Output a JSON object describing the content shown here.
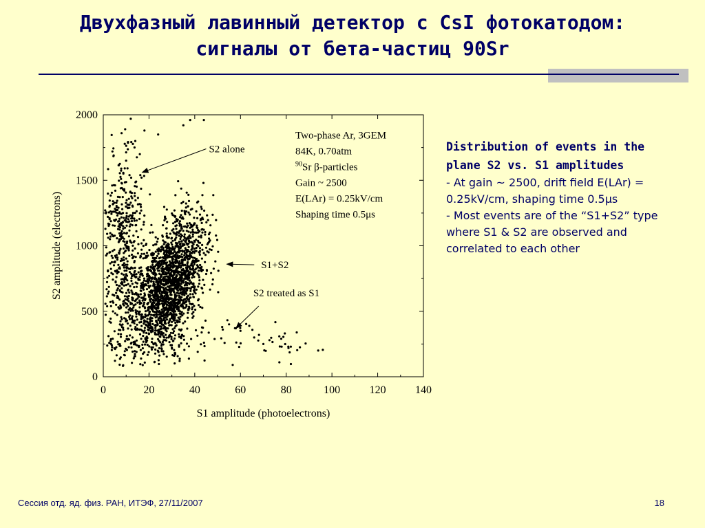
{
  "slide": {
    "title_line1": "Двухфазный лавинный детектор с CsI фотокатодом:",
    "title_line2": "сигналы от бета-частиц 90Sr",
    "description": {
      "heading": "Distribution of events in the plane S2 vs. S1 amplitudes",
      "line1": "- At gain ~ 2500, drift field E(LAr) = 0.25kV/cm, shaping time 0.5μs",
      "line2": "- Most events are of the “S1+S2” type where S1 & S2 are observed and correlated to each other"
    },
    "footer_left": "Сессия отд. яд. физ. РАН, ИТЭФ, 27/11/2007",
    "page_number": "18"
  },
  "colors": {
    "background": "#FFFFCC",
    "title": "#000066",
    "rule": "#000066",
    "accent_bar": "#C0C0C0",
    "points": "#000000"
  },
  "chart_data": {
    "type": "scatter",
    "xlabel": "S1 amplitude (photoelectrons)",
    "ylabel": "S2 amplitude (electrons)",
    "xlim": [
      0,
      140
    ],
    "ylim": [
      0,
      2000
    ],
    "x_ticks": [
      "0",
      "20",
      "40",
      "60",
      "80",
      "100",
      "120",
      "140"
    ],
    "y_ticks": [
      "0",
      "500",
      "1000",
      "1500",
      "2000"
    ],
    "grid": false,
    "annotation_box": {
      "lines": [
        "Two-phase Ar, 3GEM",
        "84K, 0.70atm",
        "90Sr β-particles",
        "Gain ~ 2500",
        "E(LAr) = 0.25kV/cm",
        "Shaping time 0.5μs"
      ],
      "sr_superscript": "90",
      "sr_rest": "Sr β-particles"
    },
    "annotations": [
      {
        "label": "S2 alone",
        "from": [
          45,
          1740
        ],
        "to": [
          17,
          1560
        ]
      },
      {
        "label": "S1+S2",
        "from": [
          66,
          855
        ],
        "to": [
          54,
          860
        ]
      },
      {
        "label": "S2 treated as S1",
        "from": [
          68,
          540
        ],
        "to": [
          58,
          370
        ]
      }
    ],
    "clusters": [
      {
        "name": "S1+S2",
        "count": 2000,
        "x_mean": 29,
        "x_sd": 7.5,
        "y_mean": 700,
        "y_sd": 260,
        "correlation": 0.45
      },
      {
        "name": "S2 alone",
        "count": 550,
        "x_mean": 9,
        "x_sd": 4.5,
        "y_mean": 900,
        "y_sd": 420
      },
      {
        "name": "S2 treated as S1",
        "count": 45,
        "x_mean": 60,
        "x_sd": 14,
        "y_mean": 280,
        "y_sd": 70
      }
    ],
    "outliers": [
      [
        12,
        1970
      ],
      [
        18,
        1880
      ],
      [
        24,
        1850
      ],
      [
        35,
        1920
      ],
      [
        38,
        1960
      ],
      [
        44,
        1960
      ],
      [
        8,
        1860
      ],
      [
        14,
        1800
      ],
      [
        4,
        1720
      ],
      [
        10,
        1650
      ],
      [
        16,
        1700
      ],
      [
        78,
        230
      ],
      [
        82,
        230
      ],
      [
        86,
        225
      ],
      [
        94,
        200
      ],
      [
        96,
        205
      ],
      [
        70,
        250
      ],
      [
        74,
        265
      ],
      [
        66,
        300
      ],
      [
        77,
        110
      ],
      [
        55,
        400
      ],
      [
        60,
        350
      ],
      [
        52,
        380
      ]
    ]
  }
}
